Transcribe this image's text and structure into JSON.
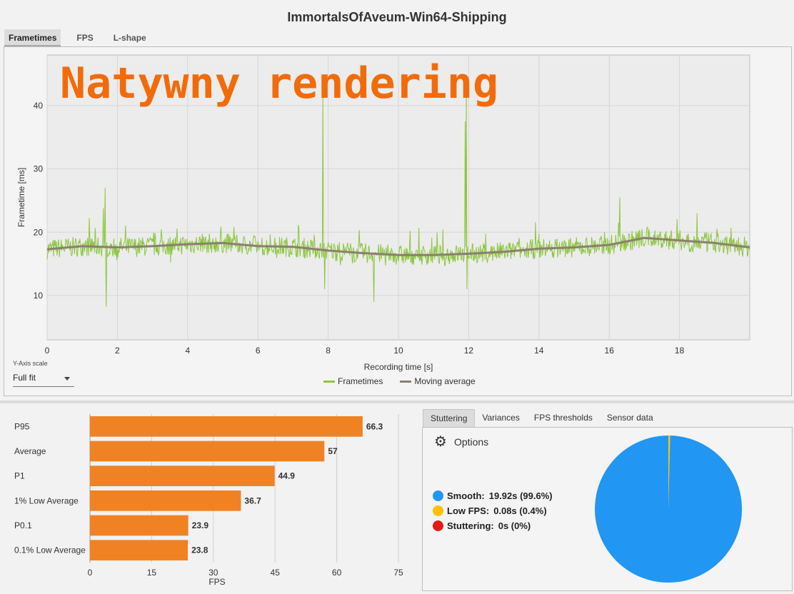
{
  "window_title": "ImmortalsOfAveum-Win64-Shipping",
  "top_tabs": [
    {
      "label": "Frametimes",
      "active": true
    },
    {
      "label": "FPS",
      "active": false
    },
    {
      "label": "L-shape",
      "active": false
    }
  ],
  "overlay_text": "Natywny rendering",
  "yaxis_scale": {
    "label": "Y-Axis scale",
    "value": "Full fit"
  },
  "colors": {
    "frametimes": "#8cc63f",
    "moving_average": "#8d7f6f",
    "bars": "#f08224",
    "overlay": "#f26b0a",
    "smooth": "#2196f3",
    "low_fps": "#ffc107",
    "stuttering": "#e31b1b"
  },
  "chart_data": [
    {
      "type": "line",
      "xlabel": "Recording time [s]",
      "ylabel": "Frametime [ms]",
      "xlim": [
        0,
        20
      ],
      "ylim": [
        3,
        48
      ],
      "xticks": [
        0,
        2,
        4,
        6,
        8,
        10,
        12,
        14,
        16,
        18
      ],
      "yticks": [
        10,
        20,
        30,
        40
      ],
      "grid": true,
      "legend_position": "bottom-center",
      "series": [
        {
          "name": "Frametimes",
          "baseline": [
            [
              0,
              17.3
            ],
            [
              1,
              17.8
            ],
            [
              2,
              17.6
            ],
            [
              3,
              17.8
            ],
            [
              4,
              18.1
            ],
            [
              5,
              18.3
            ],
            [
              6,
              17.8
            ],
            [
              7,
              17.7
            ],
            [
              8,
              17.1
            ],
            [
              9,
              16.7
            ],
            [
              10,
              16.4
            ],
            [
              11,
              16.4
            ],
            [
              12,
              16.6
            ],
            [
              13,
              16.9
            ],
            [
              14,
              17.4
            ],
            [
              15,
              17.6
            ],
            [
              16,
              18.0
            ],
            [
              17,
              19.1
            ],
            [
              18,
              18.7
            ],
            [
              19,
              18.3
            ],
            [
              20,
              17.6
            ]
          ],
          "spikes": [
            [
              1.6,
              23.8
            ],
            [
              1.65,
              27.0
            ],
            [
              1.68,
              8.2
            ],
            [
              7.85,
              41.5
            ],
            [
              7.9,
              11.0
            ],
            [
              9.3,
              24.5
            ],
            [
              9.3,
              9.0
            ],
            [
              11.9,
              37.5
            ],
            [
              11.93,
              42.0
            ],
            [
              11.95,
              11.0
            ],
            [
              16.3,
              25.5
            ],
            [
              18.5,
              23.0
            ]
          ]
        },
        {
          "name": "Moving average",
          "values": [
            [
              0,
              17.3
            ],
            [
              1,
              17.8
            ],
            [
              2,
              17.6
            ],
            [
              3,
              17.8
            ],
            [
              4,
              18.1
            ],
            [
              5,
              18.3
            ],
            [
              6,
              17.8
            ],
            [
              7,
              17.7
            ],
            [
              8,
              17.1
            ],
            [
              9,
              16.7
            ],
            [
              10,
              16.4
            ],
            [
              11,
              16.4
            ],
            [
              12,
              16.6
            ],
            [
              13,
              16.9
            ],
            [
              14,
              17.4
            ],
            [
              15,
              17.6
            ],
            [
              16,
              18.0
            ],
            [
              17,
              19.1
            ],
            [
              18,
              18.7
            ],
            [
              19,
              18.3
            ],
            [
              20,
              17.6
            ]
          ]
        }
      ]
    },
    {
      "type": "bar",
      "orientation": "horizontal",
      "xlabel": "FPS",
      "xlim": [
        0,
        75
      ],
      "xticks": [
        0,
        15,
        30,
        45,
        60,
        75
      ],
      "categories": [
        "P95",
        "Average",
        "P1",
        "1% Low Average",
        "P0.1",
        "0.1% Low Average"
      ],
      "values": [
        66.3,
        57,
        44.9,
        36.7,
        23.9,
        23.8
      ],
      "value_labels": [
        "66.3",
        "57",
        "44.9",
        "36.7",
        "23.9",
        "23.8"
      ]
    },
    {
      "type": "pie",
      "categories": [
        "Smooth",
        "Low FPS",
        "Stuttering"
      ],
      "values": [
        99.6,
        0.4,
        0
      ]
    }
  ],
  "stats_tabs": [
    {
      "label": "Stuttering",
      "active": true
    },
    {
      "label": "Variances",
      "active": false
    },
    {
      "label": "FPS thresholds",
      "active": false
    },
    {
      "label": "Sensor data",
      "active": false
    }
  ],
  "options_label": "Options",
  "stutter_legend": [
    {
      "label": "Smooth:",
      "value": "19.92s (99.6%)",
      "color": "#2196f3"
    },
    {
      "label": "Low FPS:",
      "value": "0.08s (0.4%)",
      "color": "#ffc107"
    },
    {
      "label": "Stuttering:",
      "value": "0s (0%)",
      "color": "#e31b1b"
    }
  ]
}
